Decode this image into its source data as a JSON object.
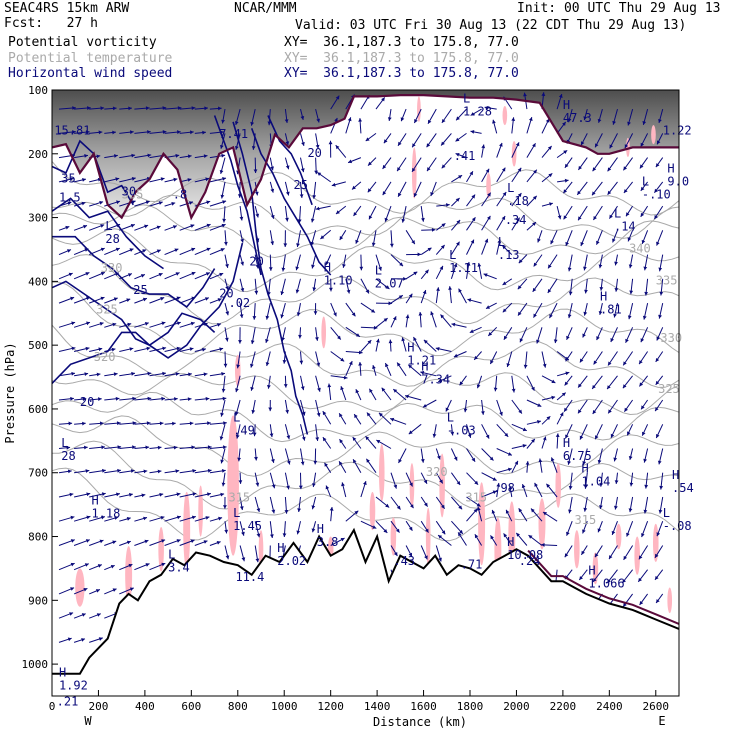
{
  "header": {
    "model": "SEAC4RS 15km ARW",
    "forecast": "Fcst:   27 h",
    "org": "NCAR/MMM",
    "valid": "Valid: 03 UTC Fri 30 Aug 13 (22 CDT Thu 29 Aug 13)",
    "init": "Init: 00 UTC Thu 29 Aug 13",
    "fields": [
      {
        "name": "Potential vorticity",
        "xy": "XY=  36.1,187.3 to 175.8, 77.0",
        "color": "#000000"
      },
      {
        "name": "Potential temperature",
        "xy": "XY=  36.1,187.3 to 175.8, 77.0",
        "color": "#aaaaaa"
      },
      {
        "name": "Horizontal wind speed",
        "xy": "XY=  36.1,187.3 to 175.8, 77.0",
        "color": "#0a0a7a"
      }
    ]
  },
  "chart_data": {
    "type": "vertical cross-section",
    "xlabel": "Distance (km)",
    "ylabel": "Pressure (hPa)",
    "xlim": [
      0,
      2700
    ],
    "ylim": [
      1050,
      100
    ],
    "x_ticks": [
      0,
      200,
      400,
      600,
      800,
      1000,
      1200,
      1400,
      1600,
      1800,
      2000,
      2200,
      2400,
      2600
    ],
    "y_ticks": [
      100,
      200,
      300,
      400,
      500,
      600,
      700,
      800,
      900,
      1000
    ],
    "end_labels": {
      "left": "W",
      "right": "E"
    },
    "colors": {
      "wind": "#0a0a7a",
      "theta": "#aaaaaa",
      "pv_fill": "#ffb6c1",
      "terrain": "#000000",
      "tropopause": "#5a0a3a"
    },
    "terrain": {
      "x": [
        0,
        120,
        160,
        240,
        290,
        330,
        370,
        420,
        470,
        520,
        570,
        620,
        680,
        740,
        800,
        860,
        920,
        980,
        1040,
        1100,
        1150,
        1200,
        1250,
        1300,
        1350,
        1400,
        1450,
        1500,
        1550,
        1600,
        1650,
        1700,
        1750,
        1800,
        1850,
        1900,
        1950,
        2000,
        2050,
        2100,
        2150,
        2200,
        2250,
        2300,
        2400,
        2500,
        2600,
        2700
      ],
      "p": [
        1015,
        1015,
        990,
        960,
        905,
        890,
        900,
        870,
        860,
        835,
        845,
        825,
        830,
        840,
        845,
        860,
        830,
        840,
        810,
        840,
        800,
        830,
        820,
        790,
        840,
        800,
        870,
        830,
        840,
        850,
        830,
        860,
        845,
        850,
        860,
        840,
        830,
        820,
        830,
        850,
        870,
        870,
        880,
        890,
        905,
        915,
        930,
        945
      ]
    },
    "tropopause": {
      "x": [
        0,
        60,
        120,
        180,
        240,
        300,
        360,
        420,
        480,
        540,
        600,
        660,
        720,
        780,
        840,
        900,
        960,
        1020,
        1080,
        1140,
        1200,
        1260,
        1300,
        1400,
        1500,
        1600,
        1700,
        1800,
        1900,
        2000,
        2100,
        2200,
        2300,
        2350,
        2400,
        2500,
        2600,
        2700
      ],
      "p": [
        190,
        185,
        230,
        200,
        280,
        300,
        260,
        240,
        200,
        225,
        300,
        260,
        200,
        190,
        280,
        240,
        170,
        190,
        160,
        160,
        155,
        145,
        110,
        110,
        108,
        108,
        110,
        112,
        112,
        115,
        120,
        180,
        190,
        200,
        200,
        190,
        190,
        190
      ]
    },
    "theta_labels": [
      {
        "x": 190,
        "p": 450,
        "text": "325"
      },
      {
        "x": 210,
        "p": 385,
        "text": "330"
      },
      {
        "x": 2485,
        "p": 355,
        "text": "340"
      },
      {
        "x": 2600,
        "p": 405,
        "text": "335"
      },
      {
        "x": 2620,
        "p": 495,
        "text": "330"
      },
      {
        "x": 2610,
        "p": 575,
        "text": "325"
      },
      {
        "x": 1610,
        "p": 705,
        "text": "320"
      },
      {
        "x": 180,
        "p": 525,
        "text": "320"
      },
      {
        "x": 1780,
        "p": 745,
        "text": "315"
      },
      {
        "x": 2250,
        "p": 780,
        "text": "315"
      },
      {
        "x": 760,
        "p": 745,
        "text": "315"
      },
      {
        "x": 300,
        "p": 270,
        "text": "355"
      }
    ],
    "speed_labels": [
      {
        "x": 40,
        "p": 245,
        "text": "35"
      },
      {
        "x": 300,
        "p": 265,
        "text": "30"
      },
      {
        "x": 350,
        "p": 420,
        "text": "25"
      },
      {
        "x": 1040,
        "p": 255,
        "text": "25"
      },
      {
        "x": 1100,
        "p": 205,
        "text": "20"
      },
      {
        "x": 850,
        "p": 375,
        "text": "20"
      },
      {
        "x": 120,
        "p": 595,
        "text": "20"
      }
    ],
    "extrema": [
      {
        "x": 10,
        "p": 170,
        "kind": "",
        "value": "15.81"
      },
      {
        "x": 30,
        "p": 275,
        "kind": "",
        "value": "1.5"
      },
      {
        "x": 230,
        "p": 340,
        "kind": "L",
        "value": "28"
      },
      {
        "x": 520,
        "p": 270,
        "kind": "",
        "value": ".8"
      },
      {
        "x": 720,
        "p": 425,
        "kind": "",
        "value": "20"
      },
      {
        "x": 760,
        "p": 440,
        "kind": "",
        "value": ".02"
      },
      {
        "x": 720,
        "p": 175,
        "kind": "",
        "value": "7.41"
      },
      {
        "x": 1170,
        "p": 405,
        "kind": "H",
        "value": "1.10"
      },
      {
        "x": 1390,
        "p": 410,
        "kind": "L",
        "value": "2.07"
      },
      {
        "x": 1710,
        "p": 385,
        "kind": "L",
        "value": "1.11"
      },
      {
        "x": 1770,
        "p": 140,
        "kind": "L",
        "value": "1.28"
      },
      {
        "x": 1730,
        "p": 210,
        "kind": "",
        "value": ".41"
      },
      {
        "x": 1960,
        "p": 280,
        "kind": "L",
        "value": ".18"
      },
      {
        "x": 1950,
        "p": 310,
        "kind": "",
        "value": ".34"
      },
      {
        "x": 1920,
        "p": 365,
        "kind": "L",
        "value": ".13"
      },
      {
        "x": 2200,
        "p": 150,
        "kind": "H",
        "value": "47.3"
      },
      {
        "x": 2420,
        "p": 320,
        "kind": "L",
        "value": ".14"
      },
      {
        "x": 2630,
        "p": 170,
        "kind": "",
        "value": "1.22"
      },
      {
        "x": 2650,
        "p": 250,
        "kind": "H",
        "value": "9.0"
      },
      {
        "x": 2540,
        "p": 270,
        "kind": "L",
        "value": "-.10"
      },
      {
        "x": 2360,
        "p": 450,
        "kind": "H",
        "value": ".81"
      },
      {
        "x": 1530,
        "p": 530,
        "kind": "H",
        "value": "1.21"
      },
      {
        "x": 1590,
        "p": 560,
        "kind": "H",
        "value": "7.34"
      },
      {
        "x": 780,
        "p": 640,
        "kind": "L",
        "value": ".49"
      },
      {
        "x": 1700,
        "p": 640,
        "kind": "L",
        "value": "-.03"
      },
      {
        "x": 2200,
        "p": 680,
        "kind": "H",
        "value": "6.75"
      },
      {
        "x": 2280,
        "p": 720,
        "kind": "H",
        "value": "1.04"
      },
      {
        "x": 2670,
        "p": 730,
        "kind": "H",
        "value": ".54"
      },
      {
        "x": 1900,
        "p": 730,
        "kind": "",
        "value": ".98"
      },
      {
        "x": 170,
        "p": 770,
        "kind": "H",
        "value": "1.18"
      },
      {
        "x": 780,
        "p": 790,
        "kind": "L",
        "value": "1.45"
      },
      {
        "x": 2630,
        "p": 790,
        "kind": "L",
        "value": "-.08"
      },
      {
        "x": 500,
        "p": 855,
        "kind": "L",
        "value": "3.4"
      },
      {
        "x": 790,
        "p": 870,
        "kind": "",
        "value": "11.4"
      },
      {
        "x": 970,
        "p": 845,
        "kind": "H",
        "value": "2.02"
      },
      {
        "x": 1140,
        "p": 815,
        "kind": "H",
        "value": "3.8"
      },
      {
        "x": 1470,
        "p": 845,
        "kind": "",
        "value": ".43"
      },
      {
        "x": 1760,
        "p": 850,
        "kind": "",
        "value": ".71"
      },
      {
        "x": 1960,
        "p": 835,
        "kind": "H",
        "value": "10.08"
      },
      {
        "x": 2010,
        "p": 845,
        "kind": "",
        "value": ".24"
      },
      {
        "x": 2310,
        "p": 880,
        "kind": "H",
        "value": "1.066"
      },
      {
        "x": 30,
        "p": 1040,
        "kind": "H",
        "value": "1.92"
      },
      {
        "x": 20,
        "p": 1065,
        "kind": "",
        "value": ".21"
      },
      {
        "x": 40,
        "p": 680,
        "kind": "L",
        "value": "28"
      }
    ]
  }
}
